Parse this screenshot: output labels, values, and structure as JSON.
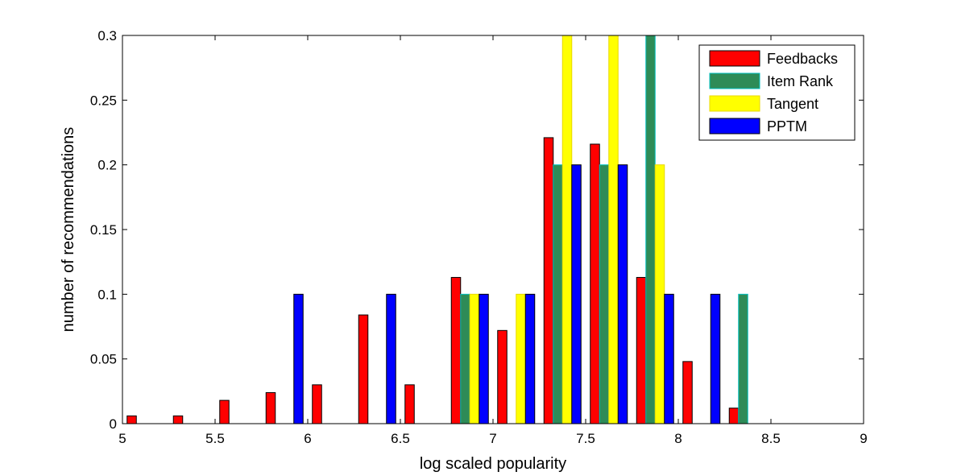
{
  "chart_data": {
    "type": "bar",
    "title": "",
    "xlabel": "log scaled popularity",
    "ylabel": "number of recommendations",
    "xlim": [
      5,
      9
    ],
    "ylim": [
      0,
      0.3
    ],
    "xticks": [
      "5",
      "5.5",
      "6",
      "6.5",
      "7",
      "7.5",
      "8",
      "8.5",
      "9"
    ],
    "yticks": [
      "0",
      "0.05",
      "0.1",
      "0.15",
      "0.2",
      "0.25",
      "0.3"
    ],
    "grid": false,
    "legend_position": "top-right",
    "bin_centers": [
      5.125,
      5.375,
      5.625,
      5.875,
      6.125,
      6.375,
      6.625,
      6.875,
      7.125,
      7.375,
      7.625,
      7.875,
      8.125,
      8.375,
      8.625,
      8.875
    ],
    "series": [
      {
        "name": "Feedbacks",
        "color": "#ff0000",
        "edge": "#000000",
        "values": [
          0.006,
          0.006,
          0.018,
          0.024,
          0.03,
          0.084,
          0.03,
          0.113,
          0.072,
          0.221,
          0.216,
          0.113,
          0.048,
          0.012,
          0,
          0
        ]
      },
      {
        "name": "Item Rank",
        "color": "#2e8b57",
        "edge": "#00bfbf",
        "values": [
          0,
          0,
          0,
          0,
          0,
          0,
          0,
          0.1,
          0,
          0.2,
          0.2,
          0.3,
          0,
          0.1,
          0,
          0
        ]
      },
      {
        "name": "Tangent",
        "color": "#ffff00",
        "edge": "#e8d800",
        "values": [
          0,
          0,
          0,
          0,
          0,
          0,
          0,
          0.1,
          0.1,
          0.3,
          0.3,
          0.2,
          0,
          0,
          0,
          0
        ]
      },
      {
        "name": "PPTM",
        "color": "#0000ff",
        "edge": "#000000",
        "values": [
          0,
          0,
          0,
          0.1,
          0,
          0.1,
          0,
          0.1,
          0.1,
          0.2,
          0.2,
          0.1,
          0.1,
          0,
          0,
          0
        ]
      }
    ]
  }
}
